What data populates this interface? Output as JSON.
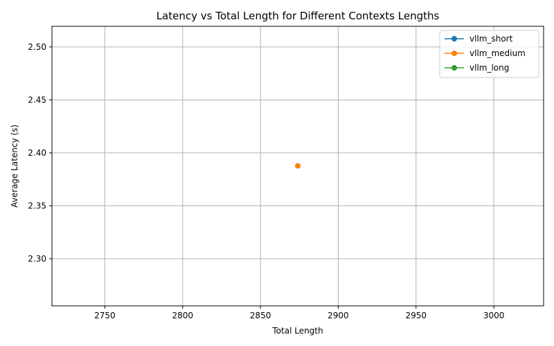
{
  "chart_data": {
    "type": "line",
    "title": "Latency vs Total Length for Different Contexts Lengths",
    "xlabel": "Total Length",
    "ylabel": "Average Latency (s)",
    "xlim": [
      2716,
      3032
    ],
    "ylim": [
      2.2555,
      2.5195
    ],
    "xticks": [
      2750,
      2800,
      2850,
      2900,
      2950,
      3000
    ],
    "xtick_labels": [
      "2750",
      "2800",
      "2850",
      "2900",
      "2950",
      "3000"
    ],
    "yticks": [
      2.3,
      2.35,
      2.4,
      2.45,
      2.5
    ],
    "ytick_labels": [
      "2.30",
      "2.35",
      "2.40",
      "2.45",
      "2.50"
    ],
    "grid": true,
    "legend_position": "top-right",
    "series": [
      {
        "name": "vllm_short",
        "color": "#1f77b4",
        "marker": "circle",
        "points": []
      },
      {
        "name": "vllm_medium",
        "color": "#ff7f0e",
        "marker": "circle",
        "points": [
          {
            "x": 2874,
            "y": 2.3877
          }
        ]
      },
      {
        "name": "vllm_long",
        "color": "#2ca02c",
        "marker": "circle",
        "points": []
      }
    ]
  }
}
